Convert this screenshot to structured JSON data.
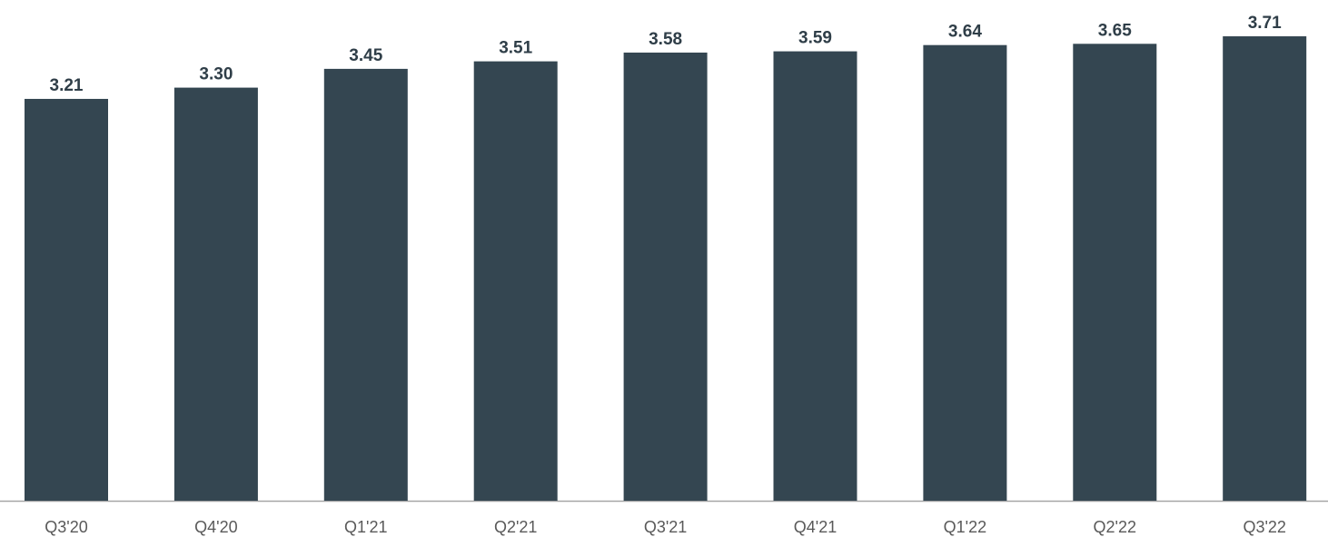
{
  "chart_data": {
    "type": "bar",
    "categories": [
      "Q3'20",
      "Q4'20",
      "Q1'21",
      "Q2'21",
      "Q3'21",
      "Q4'21",
      "Q1'22",
      "Q2'22",
      "Q3'22"
    ],
    "values": [
      3.21,
      3.3,
      3.45,
      3.51,
      3.58,
      3.59,
      3.64,
      3.65,
      3.71
    ],
    "value_labels": [
      "3.21",
      "3.30",
      "3.45",
      "3.51",
      "3.58",
      "3.59",
      "3.64",
      "3.65",
      "3.71"
    ],
    "color": "#344651",
    "ylim": [
      0,
      4
    ]
  }
}
